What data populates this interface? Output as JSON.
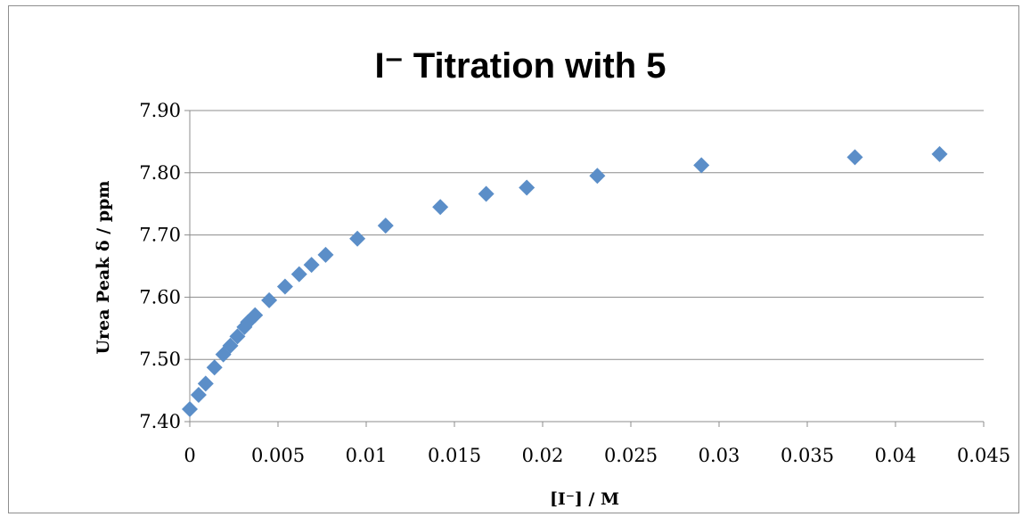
{
  "chart_data": {
    "type": "scatter",
    "title": "I⁻ Titration with 5",
    "xlabel": "[I⁻] / M",
    "ylabel": "Urea Peak δ  / ppm",
    "xlim": [
      0,
      0.045
    ],
    "ylim": [
      7.4,
      7.9
    ],
    "x_ticks": [
      0,
      0.005,
      0.01,
      0.015,
      0.02,
      0.025,
      0.03,
      0.035,
      0.04,
      0.045
    ],
    "x_tick_labels": [
      "0",
      "0.005",
      "0.01",
      "0.015",
      "0.02",
      "0.025",
      "0.03",
      "0.035",
      "0.04",
      "0.045"
    ],
    "y_ticks": [
      7.4,
      7.5,
      7.6,
      7.7,
      7.8,
      7.9
    ],
    "y_tick_labels": [
      "7.40",
      "7.50",
      "7.60",
      "7.70",
      "7.80",
      "7.90"
    ],
    "grid": "horizontal",
    "marker": "diamond",
    "color": "#5b8ec8",
    "series": [
      {
        "points": [
          [
            0.0,
            7.42
          ],
          [
            0.0005,
            7.443
          ],
          [
            0.0009,
            7.461
          ],
          [
            0.0014,
            7.487
          ],
          [
            0.0019,
            7.508
          ],
          [
            0.0023,
            7.522
          ],
          [
            0.0027,
            7.537
          ],
          [
            0.0031,
            7.552
          ],
          [
            0.0033,
            7.56
          ],
          [
            0.0037,
            7.571
          ],
          [
            0.0045,
            7.595
          ],
          [
            0.0054,
            7.617
          ],
          [
            0.0062,
            7.637
          ],
          [
            0.0069,
            7.652
          ],
          [
            0.0077,
            7.668
          ],
          [
            0.0095,
            7.694
          ],
          [
            0.0111,
            7.715
          ],
          [
            0.0142,
            7.745
          ],
          [
            0.0168,
            7.766
          ],
          [
            0.0191,
            7.776
          ],
          [
            0.0231,
            7.795
          ],
          [
            0.029,
            7.812
          ],
          [
            0.0377,
            7.825
          ],
          [
            0.0425,
            7.83
          ]
        ]
      }
    ]
  }
}
